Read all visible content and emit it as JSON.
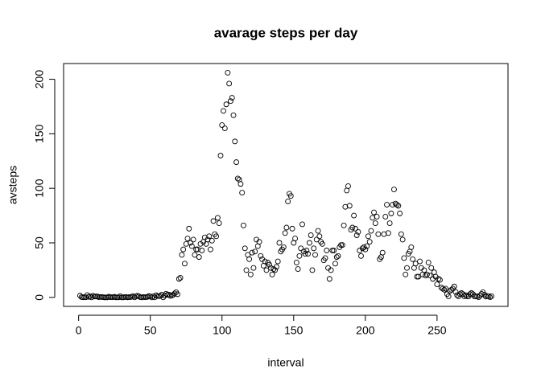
{
  "chart_data": {
    "type": "scatter",
    "title": "avarage steps per day",
    "x_label": "interval",
    "y_label": "avsteps",
    "x": [
      1,
      2,
      3,
      4,
      5,
      6,
      7,
      8,
      9,
      10,
      11,
      12,
      13,
      14,
      15,
      16,
      17,
      18,
      19,
      20,
      21,
      22,
      23,
      24,
      25,
      26,
      27,
      28,
      29,
      30,
      31,
      32,
      33,
      34,
      35,
      36,
      37,
      38,
      39,
      40,
      41,
      42,
      43,
      44,
      45,
      46,
      47,
      48,
      49,
      50,
      51,
      52,
      53,
      54,
      55,
      56,
      57,
      58,
      59,
      60,
      61,
      62,
      63,
      64,
      65,
      66,
      67,
      68,
      69,
      70,
      71,
      72,
      73,
      74,
      75,
      76,
      77,
      78,
      79,
      80,
      81,
      82,
      83,
      84,
      85,
      86,
      87,
      88,
      89,
      90,
      91,
      92,
      93,
      94,
      95,
      96,
      97,
      98,
      99,
      100,
      101,
      102,
      103,
      104,
      105,
      106,
      107,
      108,
      109,
      110,
      111,
      112,
      113,
      114,
      115,
      116,
      117,
      118,
      119,
      120,
      121,
      122,
      123,
      124,
      125,
      126,
      127,
      128,
      129,
      130,
      131,
      132,
      133,
      134,
      135,
      136,
      137,
      138,
      139,
      140,
      141,
      142,
      143,
      144,
      145,
      146,
      147,
      148,
      149,
      150,
      151,
      152,
      153,
      154,
      155,
      156,
      157,
      158,
      159,
      160,
      161,
      162,
      163,
      164,
      165,
      166,
      167,
      168,
      169,
      170,
      171,
      172,
      173,
      174,
      175,
      176,
      177,
      178,
      179,
      180,
      181,
      182,
      183,
      184,
      185,
      186,
      187,
      188,
      189,
      190,
      191,
      192,
      193,
      194,
      195,
      196,
      197,
      198,
      199,
      200,
      201,
      202,
      203,
      204,
      205,
      206,
      207,
      208,
      209,
      210,
      211,
      212,
      213,
      214,
      215,
      216,
      217,
      218,
      219,
      220,
      221,
      222,
      223,
      224,
      225,
      226,
      227,
      228,
      229,
      230,
      231,
      232,
      233,
      234,
      235,
      236,
      237,
      238,
      239,
      240,
      241,
      242,
      243,
      244,
      245,
      246,
      247,
      248,
      249,
      250,
      251,
      252,
      253,
      254,
      255,
      256,
      257,
      258,
      259,
      260,
      261,
      262,
      263,
      264,
      265,
      266,
      267,
      268,
      269,
      270,
      271,
      272,
      273,
      274,
      275,
      276,
      277,
      278,
      279,
      280,
      281,
      282,
      283,
      284,
      285,
      286,
      287,
      288
    ],
    "values": [
      1.7,
      0.3,
      0.1,
      0.2,
      0.1,
      2.1,
      0.5,
      0.9,
      0,
      1.5,
      0.8,
      0.8,
      0.9,
      0.2,
      0.4,
      0.4,
      0.2,
      0,
      0,
      0,
      0.6,
      0.2,
      0.2,
      0.2,
      0.5,
      0,
      0.1,
      0,
      1.1,
      0,
      0,
      0.3,
      0.4,
      0,
      0.3,
      0.2,
      0.6,
      1.2,
      0,
      0.9,
      1.5,
      1,
      0.2,
      0,
      0.4,
      0.2,
      0.2,
      0.5,
      1.3,
      0.8,
      0,
      0.9,
      0,
      2,
      1.2,
      1.1,
      1.4,
      2.5,
      0,
      1.7,
      3.3,
      2.4,
      2.6,
      1.4,
      1.8,
      2.4,
      3.6,
      4.8,
      2.9,
      17,
      18,
      39,
      44,
      31,
      49,
      54,
      63,
      50,
      47,
      53,
      39,
      44,
      44,
      37,
      49,
      43,
      51,
      55,
      49,
      53,
      56,
      44,
      52,
      70,
      58,
      56,
      73,
      68,
      130,
      158,
      171,
      155,
      177,
      206,
      196,
      180,
      183,
      167,
      143,
      124,
      109,
      108,
      104,
      96,
      66,
      45,
      25,
      39,
      35,
      21,
      41,
      27,
      42,
      53,
      47,
      51,
      38,
      35,
      29,
      33,
      25,
      32,
      30,
      27,
      21,
      26,
      25,
      28,
      33,
      50,
      42,
      44,
      46,
      59,
      64,
      88,
      95,
      93,
      63,
      50,
      54,
      32,
      26,
      38,
      45,
      67,
      42,
      40,
      43,
      40,
      50,
      57,
      25,
      45,
      39,
      53,
      61,
      56,
      51,
      49,
      34,
      36,
      43,
      27,
      17,
      25,
      43,
      43,
      31,
      37,
      38,
      46,
      48,
      48,
      66,
      83,
      98,
      102,
      84,
      62,
      64,
      75,
      63,
      57,
      60,
      43,
      38,
      45,
      46,
      44,
      47,
      56,
      51,
      61,
      73,
      78,
      68,
      74,
      58,
      35,
      37,
      41,
      58,
      74,
      85,
      59,
      68,
      77,
      85,
      99,
      86,
      85,
      84,
      77,
      58,
      53,
      36,
      21,
      27,
      40,
      42,
      46,
      35,
      27,
      31,
      19,
      19,
      33,
      27,
      21,
      25,
      20,
      21,
      32,
      20,
      27,
      17,
      23,
      19,
      12,
      17,
      16,
      9,
      8,
      7,
      8,
      3,
      1,
      6,
      7,
      8,
      10,
      5,
      2,
      1,
      3,
      4,
      3,
      1,
      2,
      1,
      1,
      3,
      4,
      3,
      1,
      1,
      1,
      0.2,
      1.6,
      3.2,
      4.7,
      2.6,
      0.7,
      1.2,
      1,
      0.2,
      1.1
    ],
    "color": "#000000",
    "xlim": [
      -10.48,
      299.48
    ],
    "ylim": [
      -8.25,
      214.42
    ],
    "xticks": [
      0,
      50,
      100,
      150,
      200,
      250
    ],
    "yticks": [
      0,
      50,
      100,
      150,
      200
    ]
  }
}
